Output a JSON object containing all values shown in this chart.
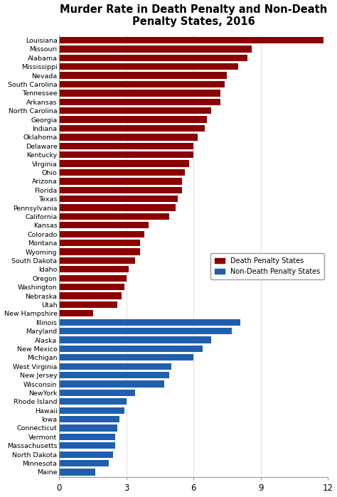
{
  "title": "Murder Rate in Death Penalty and Non-Death\nPenalty States, 2016",
  "dp_states": [
    [
      "Louisiana",
      11.8
    ],
    [
      "Missouri",
      8.6
    ],
    [
      "Alabama",
      8.4
    ],
    [
      "Mississippi",
      8.0
    ],
    [
      "Nevada",
      7.5
    ],
    [
      "South Carolina",
      7.4
    ],
    [
      "Tennessee",
      7.2
    ],
    [
      "Arkansas",
      7.2
    ],
    [
      "North Carolina",
      6.8
    ],
    [
      "Georgia",
      6.6
    ],
    [
      "Indiana",
      6.5
    ],
    [
      "Oklahoma",
      6.2
    ],
    [
      "Delaware",
      6.0
    ],
    [
      "Kentucky",
      6.0
    ],
    [
      "Virginia",
      5.8
    ],
    [
      "Ohio",
      5.6
    ],
    [
      "Arizona",
      5.5
    ],
    [
      "Florida",
      5.5
    ],
    [
      "Texas",
      5.3
    ],
    [
      "Pennsylvania",
      5.2
    ],
    [
      "California",
      4.9
    ],
    [
      "Kansas",
      4.0
    ],
    [
      "Colorado",
      3.8
    ],
    [
      "Montana",
      3.6
    ],
    [
      "Wyoming",
      3.6
    ],
    [
      "South Dakota",
      3.4
    ],
    [
      "Idaho",
      3.1
    ],
    [
      "Oregon",
      3.0
    ],
    [
      "Washington",
      2.9
    ],
    [
      "Nebraska",
      2.8
    ],
    [
      "Utah",
      2.6
    ],
    [
      "New Hampshire",
      1.5
    ]
  ],
  "ndp_states": [
    [
      "Illinois",
      8.1
    ],
    [
      "Maryland",
      7.7
    ],
    [
      "Alaska",
      6.8
    ],
    [
      "New Mexico",
      6.4
    ],
    [
      "Michigan",
      6.0
    ],
    [
      "West Virginia",
      5.0
    ],
    [
      "New Jersey",
      4.9
    ],
    [
      "Wisconsin",
      4.7
    ],
    [
      "NewYork",
      3.4
    ],
    [
      "Rhode Island",
      3.0
    ],
    [
      "Hawaii",
      2.9
    ],
    [
      "Iowa",
      2.7
    ],
    [
      "Connecticut",
      2.6
    ],
    [
      "Vermont",
      2.5
    ],
    [
      "Massachusetts",
      2.5
    ],
    [
      "North Dakota",
      2.4
    ],
    [
      "Minnesota",
      2.2
    ],
    [
      "Maine",
      1.6
    ]
  ],
  "dp_color": "#8B0000",
  "ndp_color": "#1F5FAD",
  "bg_color": "#FFFFFF",
  "title_fontsize": 10.5,
  "bar_height": 0.75,
  "xlim": [
    0,
    12
  ],
  "xticks": [
    0,
    3,
    6,
    9,
    12
  ]
}
